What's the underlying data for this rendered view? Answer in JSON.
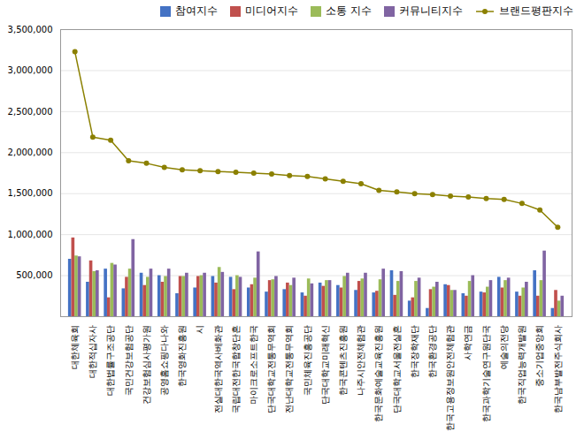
{
  "chart_data": {
    "type": "bar",
    "categories": [
      "대한체육회",
      "대한적십자사",
      "대한법률구조공단",
      "국민건강보험공단",
      "건강보험심사평가원",
      "공영홈쇼핑다나와",
      "한국영화진흥원",
      "시",
      "전실대한국역사베화관",
      "국립대전한국합창단혼",
      "마이크로소프트한국",
      "단국대학교전통무역회",
      "전난대학교전통무역회",
      "국민체육진흥공단",
      "단국대학교미래혁신",
      "한국콘텐츠진흥원",
      "나주시안전체험관",
      "한국문화예술교육진흥원",
      "단국대학교서울전실혼",
      "한국장학재단",
      "한국환경공단",
      "한국고용정보원안전체험관",
      "사학연금",
      "한국과학기술연구원단국",
      "예술의전당",
      "한국직업능력개발원",
      "중소기업중앙회",
      "한국남부발전주식회사"
    ],
    "series": [
      {
        "name": "참여지수",
        "type": "bar",
        "color": "#4472c4",
        "values": [
          700000,
          420000,
          580000,
          340000,
          530000,
          500000,
          280000,
          350000,
          490000,
          480000,
          350000,
          300000,
          330000,
          290000,
          410000,
          380000,
          320000,
          290000,
          560000,
          190000,
          100000,
          390000,
          280000,
          300000,
          480000,
          300000,
          560000,
          100000
        ]
      },
      {
        "name": "미디어지수",
        "type": "bar",
        "color": "#c0504d",
        "values": [
          960000,
          680000,
          230000,
          480000,
          380000,
          420000,
          490000,
          490000,
          410000,
          330000,
          390000,
          440000,
          410000,
          250000,
          370000,
          350000,
          430000,
          310000,
          260000,
          230000,
          330000,
          380000,
          250000,
          290000,
          350000,
          250000,
          250000,
          320000
        ]
      },
      {
        "name": "소통 지수",
        "type": "bar",
        "color": "#9bbb59",
        "values": [
          740000,
          550000,
          650000,
          580000,
          480000,
          490000,
          490000,
          500000,
          600000,
          500000,
          470000,
          450000,
          380000,
          460000,
          440000,
          490000,
          460000,
          450000,
          430000,
          430000,
          360000,
          320000,
          430000,
          360000,
          440000,
          350000,
          440000,
          190000
        ]
      },
      {
        "name": "커뮤니티지수",
        "type": "bar",
        "color": "#8064a2",
        "values": [
          730000,
          560000,
          630000,
          940000,
          580000,
          580000,
          530000,
          530000,
          540000,
          480000,
          790000,
          490000,
          470000,
          400000,
          440000,
          530000,
          530000,
          580000,
          550000,
          470000,
          420000,
          320000,
          500000,
          440000,
          470000,
          420000,
          800000,
          250000
        ]
      },
      {
        "name": "브랜드평판지수",
        "type": "line",
        "marker": "circle",
        "color": "#8b8000",
        "values": [
          3230000,
          2190000,
          2150000,
          1900000,
          1870000,
          1820000,
          1790000,
          1780000,
          1770000,
          1760000,
          1750000,
          1740000,
          1720000,
          1710000,
          1680000,
          1650000,
          1620000,
          1540000,
          1520000,
          1500000,
          1490000,
          1470000,
          1460000,
          1440000,
          1430000,
          1380000,
          1300000,
          1090000
        ]
      }
    ],
    "ylim": [
      0,
      3500000
    ],
    "yticks": [
      {
        "value": 500000,
        "label": "500,000"
      },
      {
        "value": 1000000,
        "label": "1,000,000"
      },
      {
        "value": 1500000,
        "label": "1,500,000"
      },
      {
        "value": 2000000,
        "label": "2,000,000"
      },
      {
        "value": 2500000,
        "label": "2,500,000"
      },
      {
        "value": 3000000,
        "label": "3,000,000"
      },
      {
        "value": 3500000,
        "label": "3,500,000"
      }
    ],
    "grid": true,
    "legend": "upper right"
  }
}
